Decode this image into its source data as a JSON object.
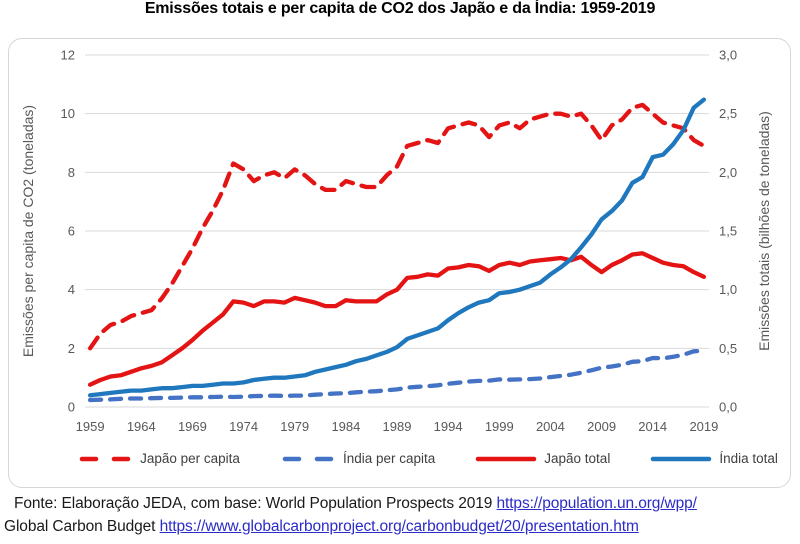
{
  "title": "Emissões totais e per capita de CO2 dos Japão e da Índia: 1959-2019",
  "chart_data": {
    "type": "line",
    "x": [
      1959,
      1960,
      1961,
      1962,
      1963,
      1964,
      1965,
      1966,
      1967,
      1968,
      1969,
      1970,
      1971,
      1972,
      1973,
      1974,
      1975,
      1976,
      1977,
      1978,
      1979,
      1980,
      1981,
      1982,
      1983,
      1984,
      1985,
      1986,
      1987,
      1988,
      1989,
      1990,
      1991,
      1992,
      1993,
      1994,
      1995,
      1996,
      1997,
      1998,
      1999,
      2000,
      2001,
      2002,
      2003,
      2004,
      2005,
      2006,
      2007,
      2008,
      2009,
      2010,
      2011,
      2012,
      2013,
      2014,
      2015,
      2016,
      2017,
      2018,
      2019
    ],
    "x_tick_labels": [
      "1959",
      "1964",
      "1969",
      "1974",
      "1979",
      "1984",
      "1989",
      "1994",
      "1999",
      "2004",
      "2009",
      "2014",
      "2019"
    ],
    "y_left": {
      "label": "Emissões per capita de CO2 (toneladas)",
      "ticks": [
        "0",
        "2",
        "4",
        "6",
        "8",
        "10",
        "12"
      ],
      "range": [
        0,
        12
      ]
    },
    "y_right": {
      "label": "Emissões totais (bilhões de toneladas)",
      "ticks": [
        "0,0",
        "0,5",
        "1,0",
        "1,5",
        "2,0",
        "2,5",
        "3,0"
      ],
      "range": [
        0,
        3
      ]
    },
    "axis_ratio": 4,
    "grid": true,
    "legend_position": "bottom",
    "series": [
      {
        "id": "japao-per-capita",
        "name": "Japão per capita",
        "axis": "left",
        "style": "dashed",
        "dash": "13 9",
        "color": "#e41414",
        "values": [
          2.0,
          2.5,
          2.8,
          2.9,
          3.1,
          3.2,
          3.3,
          3.7,
          4.2,
          4.8,
          5.4,
          6.1,
          6.7,
          7.4,
          8.3,
          8.1,
          7.7,
          7.9,
          8.0,
          7.8,
          8.1,
          7.9,
          7.6,
          7.4,
          7.4,
          7.7,
          7.6,
          7.5,
          7.5,
          7.9,
          8.2,
          8.9,
          9.0,
          9.1,
          9.0,
          9.5,
          9.6,
          9.7,
          9.6,
          9.2,
          9.6,
          9.7,
          9.5,
          9.8,
          9.9,
          10.0,
          10.0,
          9.9,
          10.0,
          9.6,
          9.1,
          9.6,
          9.8,
          10.2,
          10.3,
          10.0,
          9.7,
          9.6,
          9.5,
          9.1,
          8.9
        ]
      },
      {
        "id": "india-per-capita",
        "name": "Índia per capita",
        "axis": "left",
        "style": "dashed",
        "dash": "11 9",
        "color": "#4472c4",
        "values": [
          0.24,
          0.25,
          0.26,
          0.28,
          0.29,
          0.29,
          0.3,
          0.31,
          0.31,
          0.32,
          0.33,
          0.33,
          0.34,
          0.35,
          0.34,
          0.35,
          0.37,
          0.38,
          0.39,
          0.38,
          0.39,
          0.39,
          0.42,
          0.44,
          0.46,
          0.47,
          0.5,
          0.52,
          0.54,
          0.57,
          0.6,
          0.66,
          0.69,
          0.71,
          0.74,
          0.79,
          0.83,
          0.87,
          0.89,
          0.9,
          0.94,
          0.93,
          0.94,
          0.95,
          0.97,
          1.02,
          1.06,
          1.1,
          1.17,
          1.25,
          1.34,
          1.38,
          1.44,
          1.54,
          1.56,
          1.67,
          1.66,
          1.71,
          1.78,
          1.9,
          1.92
        ]
      },
      {
        "id": "japao-total",
        "name": "Japão total",
        "axis": "right",
        "style": "solid",
        "dash": "",
        "color": "#e41414",
        "values": [
          0.19,
          0.23,
          0.26,
          0.27,
          0.3,
          0.33,
          0.35,
          0.38,
          0.44,
          0.5,
          0.57,
          0.65,
          0.72,
          0.79,
          0.9,
          0.89,
          0.86,
          0.9,
          0.9,
          0.89,
          0.93,
          0.91,
          0.89,
          0.86,
          0.86,
          0.91,
          0.9,
          0.9,
          0.9,
          0.96,
          1.0,
          1.1,
          1.11,
          1.13,
          1.12,
          1.18,
          1.19,
          1.21,
          1.2,
          1.16,
          1.21,
          1.23,
          1.21,
          1.24,
          1.25,
          1.26,
          1.27,
          1.25,
          1.28,
          1.21,
          1.15,
          1.21,
          1.25,
          1.3,
          1.31,
          1.27,
          1.23,
          1.21,
          1.2,
          1.15,
          1.11
        ]
      },
      {
        "id": "india-total",
        "name": "Índia total",
        "axis": "right",
        "style": "solid",
        "dash": "",
        "color": "#1f78be",
        "values": [
          0.1,
          0.11,
          0.12,
          0.13,
          0.14,
          0.14,
          0.15,
          0.16,
          0.16,
          0.17,
          0.18,
          0.18,
          0.19,
          0.2,
          0.2,
          0.21,
          0.23,
          0.24,
          0.25,
          0.25,
          0.26,
          0.27,
          0.3,
          0.32,
          0.34,
          0.36,
          0.39,
          0.41,
          0.44,
          0.47,
          0.51,
          0.58,
          0.61,
          0.64,
          0.67,
          0.74,
          0.8,
          0.85,
          0.89,
          0.91,
          0.97,
          0.98,
          1.0,
          1.03,
          1.06,
          1.13,
          1.19,
          1.26,
          1.36,
          1.47,
          1.6,
          1.67,
          1.76,
          1.91,
          1.96,
          2.13,
          2.15,
          2.24,
          2.36,
          2.55,
          2.62
        ]
      }
    ]
  },
  "footer": {
    "line1_text": "Fonte: Elaboração JEDA, com base: World Population Prospects 2019 ",
    "line1_link": "https://population.un.org/wpp/",
    "line2_text": "Global Carbon Budget ",
    "line2_link": "https://www.globalcarbonproject.org/carbonbudget/20/presentation.htm"
  },
  "colors": {
    "gridline": "#d9d9d9",
    "tick_text": "#595959",
    "legend_text": "#404040",
    "card_border": "#d6d6d6",
    "link": "#2b2bc8",
    "footer_text": "#1a1a1a",
    "japan_red": "#e41414",
    "india_dashed_blue": "#4472c4",
    "india_solid_blue": "#1f78be"
  }
}
